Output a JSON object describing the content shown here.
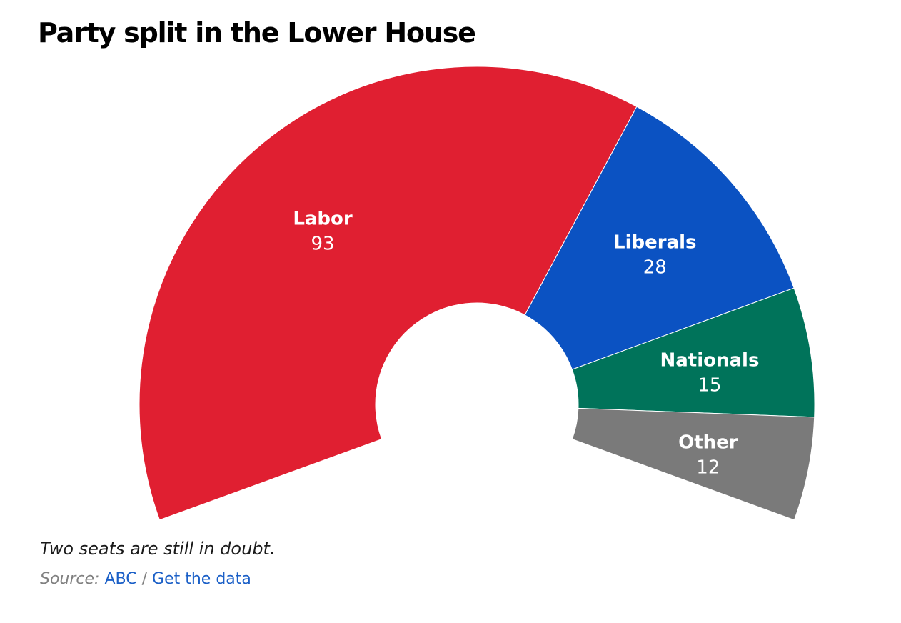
{
  "title": "Party split in the Lower House",
  "chart_data": {
    "type": "pie",
    "variant": "semicircle-donut",
    "title": "Party split in the Lower House",
    "categories": [
      "Labor",
      "Liberals",
      "Nationals",
      "Other"
    ],
    "values": [
      93,
      28,
      15,
      12
    ],
    "colors": [
      "#e01f31",
      "#0b52c2",
      "#00735a",
      "#7a7a7a"
    ],
    "legend": "none",
    "data_labels": true
  },
  "note": "Two seats are still in doubt.",
  "source": {
    "label": "Source:",
    "link1": "ABC",
    "separator": "/",
    "link2": "Get the data"
  }
}
